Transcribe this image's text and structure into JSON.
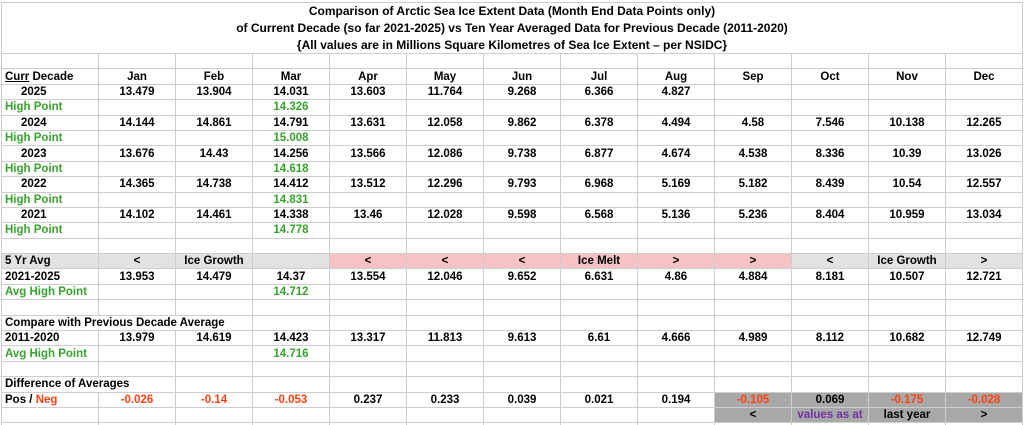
{
  "colors": {
    "text": "#000000",
    "green": "#38a32e",
    "red": "#ff4112",
    "purple": "#7030a0",
    "pink_bg": "#f6c2c4",
    "gray_bg": "#e2e2e2",
    "dark_gray_bg": "#a8a8a8",
    "gridline": "#cdcdcd",
    "background": "#ffffff"
  },
  "grid": {
    "column_count": 13,
    "rows": [
      {
        "name": "title-row",
        "title": "Comparison of Arctic Sea Ice Extent Data (Month End Data Points only)"
      },
      {
        "name": "title-row",
        "title": "of Current Decade (so far 2021-2025) vs Ten Year Averaged Data for Previous Decade (2011-2020)"
      },
      {
        "name": "title-row",
        "title": "{All values are in Millions Square Kilometres of Sea Ice Extent – per NSIDC}",
        "titleEnd": true
      },
      {
        "name": "spacer-row",
        "cells": [
          null,
          null,
          null,
          null,
          null,
          null,
          null,
          null,
          null,
          null,
          null,
          null,
          null
        ]
      },
      {
        "name": "month-header-row",
        "cells": [
          {
            "c": "l",
            "parts": [
              {
                "t": "Curr",
                "c": "u"
              },
              {
                "t": " Decade"
              }
            ]
          },
          "Jan",
          "Feb",
          "Mar",
          "Apr",
          "May",
          "Jun",
          "Jul",
          "Aug",
          "Sep",
          "Oct",
          "Nov",
          "Dec"
        ]
      },
      {
        "name": "year-row-2025",
        "cells": [
          {
            "t": "2025",
            "c": "yr"
          },
          "13.479",
          "13.904",
          "14.031",
          "13.603",
          "11.764",
          "9.268",
          "6.366",
          "4.827",
          null,
          null,
          null,
          null
        ]
      },
      {
        "name": "high-point-row-2025",
        "cells": [
          {
            "t": "High Point",
            "c": "l g"
          },
          null,
          null,
          {
            "t": "14.326",
            "c": "g"
          },
          null,
          null,
          null,
          null,
          null,
          null,
          null,
          null,
          null
        ]
      },
      {
        "name": "year-row-2024",
        "cells": [
          {
            "t": "2024",
            "c": "yr"
          },
          "14.144",
          "14.861",
          "14.791",
          "13.631",
          "12.058",
          "9.862",
          "6.378",
          "4.494",
          "4.58",
          "7.546",
          "10.138",
          "12.265"
        ]
      },
      {
        "name": "high-point-row-2024",
        "cells": [
          {
            "t": "High Point",
            "c": "l g"
          },
          null,
          null,
          {
            "t": "15.008",
            "c": "g"
          },
          null,
          null,
          null,
          null,
          null,
          null,
          null,
          null,
          null
        ]
      },
      {
        "name": "year-row-2023",
        "cells": [
          {
            "t": "2023",
            "c": "yr"
          },
          "13.676",
          "14.43",
          "14.256",
          "13.566",
          "12.086",
          "9.738",
          "6.877",
          "4.674",
          "4.538",
          "8.336",
          "10.39",
          "13.026"
        ]
      },
      {
        "name": "high-point-row-2023",
        "cells": [
          {
            "t": "High Point",
            "c": "l g"
          },
          null,
          null,
          {
            "t": "14.618",
            "c": "g"
          },
          null,
          null,
          null,
          null,
          null,
          null,
          null,
          null,
          null
        ]
      },
      {
        "name": "year-row-2022",
        "cells": [
          {
            "t": "2022",
            "c": "yr"
          },
          "14.365",
          "14.738",
          "14.412",
          "13.512",
          "12.296",
          "9.793",
          "6.968",
          "5.169",
          "5.182",
          "8.439",
          "10.54",
          "12.557"
        ]
      },
      {
        "name": "high-point-row-2022",
        "cells": [
          {
            "t": "High Point",
            "c": "l g"
          },
          null,
          null,
          {
            "t": "14.831",
            "c": "g"
          },
          null,
          null,
          null,
          null,
          null,
          null,
          null,
          null,
          null
        ]
      },
      {
        "name": "year-row-2021",
        "cells": [
          {
            "t": "2021",
            "c": "yr"
          },
          "14.102",
          "14.461",
          "14.338",
          "13.46",
          "12.028",
          "9.598",
          "6.568",
          "5.136",
          "5.236",
          "8.404",
          "10.959",
          "13.034"
        ]
      },
      {
        "name": "high-point-row-2021",
        "cells": [
          {
            "t": "High Point",
            "c": "l g"
          },
          null,
          null,
          {
            "t": "14.778",
            "c": "g"
          },
          null,
          null,
          null,
          null,
          null,
          null,
          null,
          null,
          null
        ]
      },
      {
        "name": "spacer-row",
        "cells": [
          null,
          null,
          null,
          null,
          null,
          null,
          null,
          null,
          null,
          null,
          null,
          null,
          null
        ]
      },
      {
        "name": "five-year-avg-marker-row",
        "cells": [
          {
            "t": "5 Yr Avg",
            "c": "l bgg"
          },
          {
            "t": "<",
            "c": "bgg"
          },
          {
            "t": "Ice Growth",
            "c": "bgg"
          },
          {
            "t": "",
            "c": "bgg"
          },
          {
            "t": "<",
            "c": "bgp"
          },
          {
            "t": "<",
            "c": "bgp"
          },
          {
            "t": "<",
            "c": "bgp"
          },
          {
            "t": "Ice Melt",
            "c": "bgp"
          },
          {
            "t": ">",
            "c": "bgp"
          },
          {
            "t": ">",
            "c": "bgp"
          },
          {
            "t": "<",
            "c": "bgg"
          },
          {
            "t": "Ice Growth",
            "c": "bgg"
          },
          {
            "t": ">",
            "c": "bgg"
          }
        ]
      },
      {
        "name": "avg-row-2021-2025",
        "cells": [
          {
            "t": "2021-2025",
            "c": "l"
          },
          "13.953",
          "14.479",
          "14.37",
          "13.554",
          "12.046",
          "9.652",
          "6.631",
          "4.86",
          "4.884",
          "8.181",
          "10.507",
          "12.721"
        ]
      },
      {
        "name": "avg-high-point-row-2021-2025",
        "cells": [
          {
            "t": "Avg High Point",
            "c": "l g"
          },
          null,
          null,
          {
            "t": "14.712",
            "c": "g"
          },
          null,
          null,
          null,
          null,
          null,
          null,
          null,
          null,
          null
        ]
      },
      {
        "name": "spacer-row",
        "cells": [
          null,
          null,
          null,
          null,
          null,
          null,
          null,
          null,
          null,
          null,
          null,
          null,
          null
        ]
      },
      {
        "name": "compare-heading-row",
        "cells": [
          {
            "t": "Compare with Previous Decade Average",
            "c": "l",
            "colspan": 3
          },
          null,
          null,
          null,
          null,
          null,
          null,
          null,
          null,
          null,
          null
        ]
      },
      {
        "name": "decade-avg-row-2011-2020",
        "cells": [
          {
            "t": "2011-2020",
            "c": "l"
          },
          "13.979",
          "14.619",
          "14.423",
          "13.317",
          "11.813",
          "9.613",
          "6.61",
          "4.666",
          "4.989",
          "8.112",
          "10.682",
          "12.749"
        ]
      },
      {
        "name": "avg-high-point-row-2011-2020",
        "cells": [
          {
            "t": "Avg High Point",
            "c": "l g"
          },
          null,
          null,
          {
            "t": "14.716",
            "c": "g"
          },
          null,
          null,
          null,
          null,
          null,
          null,
          null,
          null,
          null
        ]
      },
      {
        "name": "spacer-row",
        "cells": [
          null,
          null,
          null,
          null,
          null,
          null,
          null,
          null,
          null,
          null,
          null,
          null,
          null
        ]
      },
      {
        "name": "difference-heading-row",
        "cells": [
          {
            "t": "Difference of Averages",
            "c": "l",
            "colspan": 2
          },
          null,
          null,
          null,
          null,
          null,
          null,
          null,
          null,
          null,
          null,
          null
        ]
      },
      {
        "name": "pos-neg-row",
        "cells": [
          {
            "c": "l",
            "parts": [
              {
                "t": "Pos"
              },
              {
                "t": " / "
              },
              {
                "t": "Neg",
                "c": "r"
              }
            ]
          },
          {
            "t": "-0.026",
            "c": "r"
          },
          {
            "t": "-0.14",
            "c": "r"
          },
          {
            "t": "-0.053",
            "c": "r"
          },
          "0.237",
          "0.233",
          "0.039",
          "0.021",
          "0.194",
          {
            "t": "-0.105",
            "c": "r bgd"
          },
          {
            "t": "0.069",
            "c": "bgd"
          },
          {
            "t": "-0.175",
            "c": "r bgd"
          },
          {
            "t": "-0.028",
            "c": "r bgd"
          }
        ]
      },
      {
        "name": "values-as-at-row",
        "cells": [
          null,
          null,
          null,
          null,
          null,
          null,
          null,
          null,
          null,
          {
            "t": "<",
            "c": "bgd"
          },
          {
            "t": "values as at",
            "c": "pu bgd"
          },
          {
            "t": "last year",
            "c": "bgd"
          },
          {
            "t": ">",
            "c": "bgd"
          }
        ]
      },
      {
        "name": "spacer-row",
        "cells": [
          null,
          null,
          null,
          null,
          null,
          null,
          null,
          null,
          null,
          null,
          null,
          null,
          null
        ]
      }
    ]
  }
}
